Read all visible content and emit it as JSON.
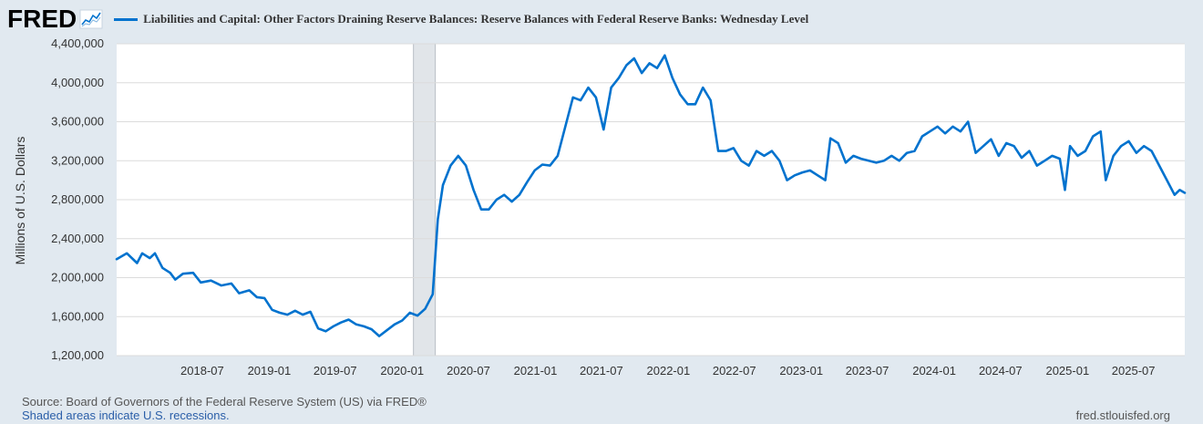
{
  "header": {
    "logo_text": "FRED",
    "logo_icon": "line-graph-icon",
    "series_title": "Liabilities and Capital: Other Factors Draining Reserve Balances: Reserve Balances with Federal Reserve Banks: Wednesday Level"
  },
  "footer": {
    "source": "Source: Board of Governors of the Federal Reserve System (US) via FRED®",
    "recession_note": "Shaded areas indicate U.S. recessions.",
    "url": "fred.stlouisfed.org"
  },
  "colors": {
    "line": "#0072ce",
    "plot_background": "#ffffff",
    "page_background": "#e1e9f0",
    "recession_shade": "#e1e5e9",
    "grid": "#dcdcdc"
  },
  "chart_data": {
    "type": "line",
    "title": "Liabilities and Capital: Other Factors Draining Reserve Balances: Reserve Balances with Federal Reserve Banks: Wednesday Level",
    "ylabel": "Millions of U.S. Dollars",
    "xlabel": "",
    "ylim": [
      1200000,
      4400000
    ],
    "xlim": [
      "2017-11-08",
      "2025-11-19"
    ],
    "yticks": [
      1200000,
      1600000,
      2000000,
      2400000,
      2800000,
      3200000,
      3600000,
      4000000,
      4400000
    ],
    "ytick_labels": [
      "1,200,000",
      "1,600,000",
      "2,000,000",
      "2,400,000",
      "2,800,000",
      "3,200,000",
      "3,600,000",
      "4,000,000",
      "4,400,000"
    ],
    "xticks": [
      "2018-07",
      "2019-01",
      "2019-07",
      "2020-01",
      "2020-07",
      "2021-01",
      "2021-07",
      "2022-01",
      "2022-07",
      "2023-01",
      "2023-07",
      "2024-01",
      "2024-07",
      "2025-01",
      "2025-07"
    ],
    "grid": "horizontal",
    "recessions": [
      [
        "2020-02",
        "2020-04"
      ]
    ],
    "series": [
      {
        "name": "Reserve Balances with Federal Reserve Banks: Wednesday Level",
        "points": [
          [
            "2017-11-08",
            2190000
          ],
          [
            "2017-12-06",
            2250000
          ],
          [
            "2018-01-03",
            2150000
          ],
          [
            "2018-01-17",
            2250000
          ],
          [
            "2018-02-07",
            2200000
          ],
          [
            "2018-02-21",
            2250000
          ],
          [
            "2018-03-14",
            2100000
          ],
          [
            "2018-04-04",
            2050000
          ],
          [
            "2018-04-18",
            1980000
          ],
          [
            "2018-05-09",
            2040000
          ],
          [
            "2018-06-06",
            2050000
          ],
          [
            "2018-06-27",
            1950000
          ],
          [
            "2018-07-25",
            1970000
          ],
          [
            "2018-08-22",
            1920000
          ],
          [
            "2018-09-19",
            1940000
          ],
          [
            "2018-10-10",
            1840000
          ],
          [
            "2018-11-07",
            1870000
          ],
          [
            "2018-11-28",
            1800000
          ],
          [
            "2018-12-19",
            1790000
          ],
          [
            "2019-01-09",
            1670000
          ],
          [
            "2019-01-30",
            1640000
          ],
          [
            "2019-02-20",
            1620000
          ],
          [
            "2019-03-13",
            1660000
          ],
          [
            "2019-04-03",
            1620000
          ],
          [
            "2019-04-24",
            1650000
          ],
          [
            "2019-05-15",
            1480000
          ],
          [
            "2019-06-05",
            1450000
          ],
          [
            "2019-06-26",
            1500000
          ],
          [
            "2019-07-17",
            1540000
          ],
          [
            "2019-08-07",
            1570000
          ],
          [
            "2019-08-28",
            1520000
          ],
          [
            "2019-09-18",
            1500000
          ],
          [
            "2019-10-09",
            1470000
          ],
          [
            "2019-10-30",
            1400000
          ],
          [
            "2019-11-20",
            1460000
          ],
          [
            "2019-12-11",
            1520000
          ],
          [
            "2020-01-01",
            1560000
          ],
          [
            "2020-01-22",
            1640000
          ],
          [
            "2020-02-12",
            1610000
          ],
          [
            "2020-03-04",
            1680000
          ],
          [
            "2020-03-25",
            1830000
          ],
          [
            "2020-04-08",
            2600000
          ],
          [
            "2020-04-22",
            2950000
          ],
          [
            "2020-05-13",
            3150000
          ],
          [
            "2020-06-03",
            3250000
          ],
          [
            "2020-06-24",
            3150000
          ],
          [
            "2020-07-15",
            2900000
          ],
          [
            "2020-08-05",
            2700000
          ],
          [
            "2020-08-26",
            2700000
          ],
          [
            "2020-09-16",
            2800000
          ],
          [
            "2020-10-07",
            2850000
          ],
          [
            "2020-10-28",
            2780000
          ],
          [
            "2020-11-18",
            2850000
          ],
          [
            "2020-12-09",
            2980000
          ],
          [
            "2020-12-30",
            3100000
          ],
          [
            "2021-01-20",
            3160000
          ],
          [
            "2021-02-10",
            3150000
          ],
          [
            "2021-03-03",
            3250000
          ],
          [
            "2021-03-24",
            3550000
          ],
          [
            "2021-04-14",
            3850000
          ],
          [
            "2021-05-05",
            3820000
          ],
          [
            "2021-05-26",
            3950000
          ],
          [
            "2021-06-16",
            3850000
          ],
          [
            "2021-07-07",
            3520000
          ],
          [
            "2021-07-28",
            3950000
          ],
          [
            "2021-08-18",
            4050000
          ],
          [
            "2021-09-08",
            4180000
          ],
          [
            "2021-09-29",
            4250000
          ],
          [
            "2021-10-20",
            4100000
          ],
          [
            "2021-11-10",
            4200000
          ],
          [
            "2021-12-01",
            4150000
          ],
          [
            "2021-12-22",
            4280000
          ],
          [
            "2022-01-12",
            4050000
          ],
          [
            "2022-02-02",
            3880000
          ],
          [
            "2022-02-23",
            3780000
          ],
          [
            "2022-03-16",
            3780000
          ],
          [
            "2022-04-06",
            3950000
          ],
          [
            "2022-04-27",
            3820000
          ],
          [
            "2022-05-18",
            3300000
          ],
          [
            "2022-06-08",
            3300000
          ],
          [
            "2022-06-29",
            3330000
          ],
          [
            "2022-07-20",
            3200000
          ],
          [
            "2022-08-10",
            3150000
          ],
          [
            "2022-08-31",
            3300000
          ],
          [
            "2022-09-21",
            3250000
          ],
          [
            "2022-10-12",
            3300000
          ],
          [
            "2022-11-02",
            3200000
          ],
          [
            "2022-11-23",
            3000000
          ],
          [
            "2022-12-14",
            3050000
          ],
          [
            "2023-01-04",
            3080000
          ],
          [
            "2023-01-25",
            3100000
          ],
          [
            "2023-02-15",
            3050000
          ],
          [
            "2023-03-08",
            3000000
          ],
          [
            "2023-03-22",
            3430000
          ],
          [
            "2023-04-12",
            3380000
          ],
          [
            "2023-05-03",
            3180000
          ],
          [
            "2023-05-24",
            3250000
          ],
          [
            "2023-06-14",
            3220000
          ],
          [
            "2023-07-05",
            3200000
          ],
          [
            "2023-07-26",
            3180000
          ],
          [
            "2023-08-16",
            3200000
          ],
          [
            "2023-09-06",
            3250000
          ],
          [
            "2023-09-27",
            3200000
          ],
          [
            "2023-10-18",
            3280000
          ],
          [
            "2023-11-08",
            3300000
          ],
          [
            "2023-11-29",
            3450000
          ],
          [
            "2023-12-20",
            3500000
          ],
          [
            "2024-01-10",
            3550000
          ],
          [
            "2024-01-31",
            3480000
          ],
          [
            "2024-02-21",
            3550000
          ],
          [
            "2024-03-13",
            3500000
          ],
          [
            "2024-04-03",
            3600000
          ],
          [
            "2024-04-24",
            3280000
          ],
          [
            "2024-05-15",
            3350000
          ],
          [
            "2024-06-05",
            3420000
          ],
          [
            "2024-06-26",
            3250000
          ],
          [
            "2024-07-17",
            3380000
          ],
          [
            "2024-08-07",
            3350000
          ],
          [
            "2024-08-28",
            3230000
          ],
          [
            "2024-09-18",
            3300000
          ],
          [
            "2024-10-09",
            3150000
          ],
          [
            "2024-10-30",
            3200000
          ],
          [
            "2024-11-20",
            3250000
          ],
          [
            "2024-12-11",
            3220000
          ],
          [
            "2024-12-25",
            2900000
          ],
          [
            "2025-01-08",
            3350000
          ],
          [
            "2025-01-29",
            3250000
          ],
          [
            "2025-02-19",
            3300000
          ],
          [
            "2025-03-12",
            3450000
          ],
          [
            "2025-04-02",
            3500000
          ],
          [
            "2025-04-16",
            3000000
          ],
          [
            "2025-05-07",
            3250000
          ],
          [
            "2025-05-28",
            3350000
          ],
          [
            "2025-06-18",
            3400000
          ],
          [
            "2025-07-09",
            3280000
          ],
          [
            "2025-07-30",
            3350000
          ],
          [
            "2025-08-20",
            3300000
          ],
          [
            "2025-09-10",
            3150000
          ],
          [
            "2025-10-01",
            3000000
          ],
          [
            "2025-10-22",
            2850000
          ],
          [
            "2025-11-05",
            2900000
          ],
          [
            "2025-11-19",
            2870000
          ]
        ]
      }
    ]
  }
}
